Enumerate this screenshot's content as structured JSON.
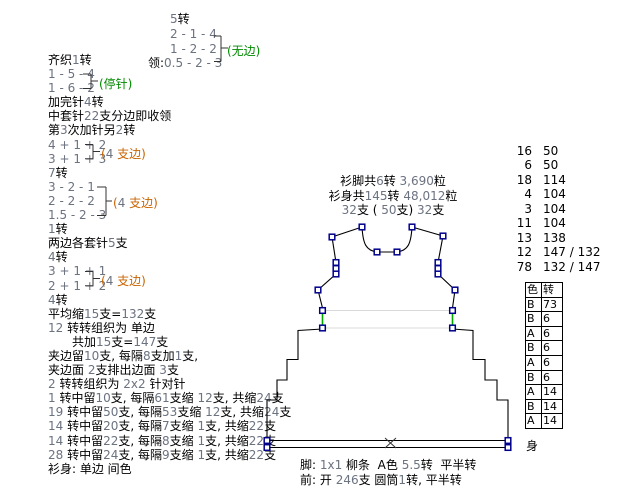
{
  "colors": {
    "text": "#000000",
    "number_tint": "#6b7280",
    "green_label": "#008a00",
    "orange_label": "#c86400",
    "marker_blue": "#00008b",
    "segment_green": "#00a800",
    "connector_gray": "#d9d9d9",
    "outline": "#000000"
  },
  "neck_block": {
    "lines": [
      "5转",
      "2 - 1 - 4",
      "1 - 2 - 2",
      "领:0.5 - 2 - 3"
    ],
    "bracket_label": "(无边)"
  },
  "left_block": {
    "lines": [
      "齐织1转",
      "1 - 5 - 4",
      "1 - 6 - 2",
      "加完针4转",
      "中套针22支分边即收领",
      "第3次加针另2转",
      "4 + 1 + 2",
      "3 + 1 + 3",
      "7转",
      "3 - 2 - 1",
      "2 - 2 - 2",
      "1.5 - 2 - 3",
      "1转",
      "两边各套针5支",
      "4转",
      "3 + 1 + 1",
      "2 + 1 + 2",
      "4转",
      "平均缩15支=132支",
      "12 转转组织为 单边",
      "共加15支=147支",
      "夹边留10支, 每隔8支加1支,",
      "夹边面 2支排出边面 3支",
      "2 转转组织为 2x2 针对针",
      "1 转中留10支, 每隔61支缩 12支, 共缩24支",
      "19 转中留50支, 每隔53支缩 12支, 共缩24支",
      "14 转中留20支, 每隔7支缩 1支, 共缩22支",
      "14 转中留22支, 每隔8支缩 1支, 共缩22支",
      "28 转中留24支, 每隔9支缩 1支, 共缩22支",
      "衫身: 单边 间色"
    ],
    "bracket_labels": [
      {
        "text": "(停针)"
      },
      {
        "text": "(4 支边)"
      },
      {
        "text": "(4 支边)"
      },
      {
        "text": "(4 支边)"
      }
    ]
  },
  "diagram": {
    "title_lines": [
      "衫脚共6转 3,690粒",
      "衫身共145转 48,012粒",
      "32支 ( 50支) 32支"
    ]
  },
  "right_rows": [
    [
      "16",
      "50"
    ],
    [
      "6",
      "50"
    ],
    [
      "18",
      "114"
    ],
    [
      "4",
      "104"
    ],
    [
      "3",
      "104"
    ],
    [
      "11",
      "104"
    ],
    [
      "13",
      "138"
    ],
    [
      "12",
      "147 / 132"
    ],
    [
      "78",
      "132 / 147"
    ]
  ],
  "color_table": {
    "headers": [
      "色",
      "转"
    ],
    "rows": [
      [
        "B",
        "73"
      ],
      [
        "B",
        "6"
      ],
      [
        "A",
        "6"
      ],
      [
        "B",
        "6"
      ],
      [
        "A",
        "6"
      ],
      [
        "B",
        "6"
      ],
      [
        "A",
        "14"
      ],
      [
        "B",
        "14"
      ],
      [
        "A",
        "14"
      ]
    ],
    "footer": "身"
  },
  "bottom_notes": [
    "脚: 1x1 柳条  A色 5.5转  平半转",
    "前: 开 246支 圆筒1转, 平半转"
  ]
}
